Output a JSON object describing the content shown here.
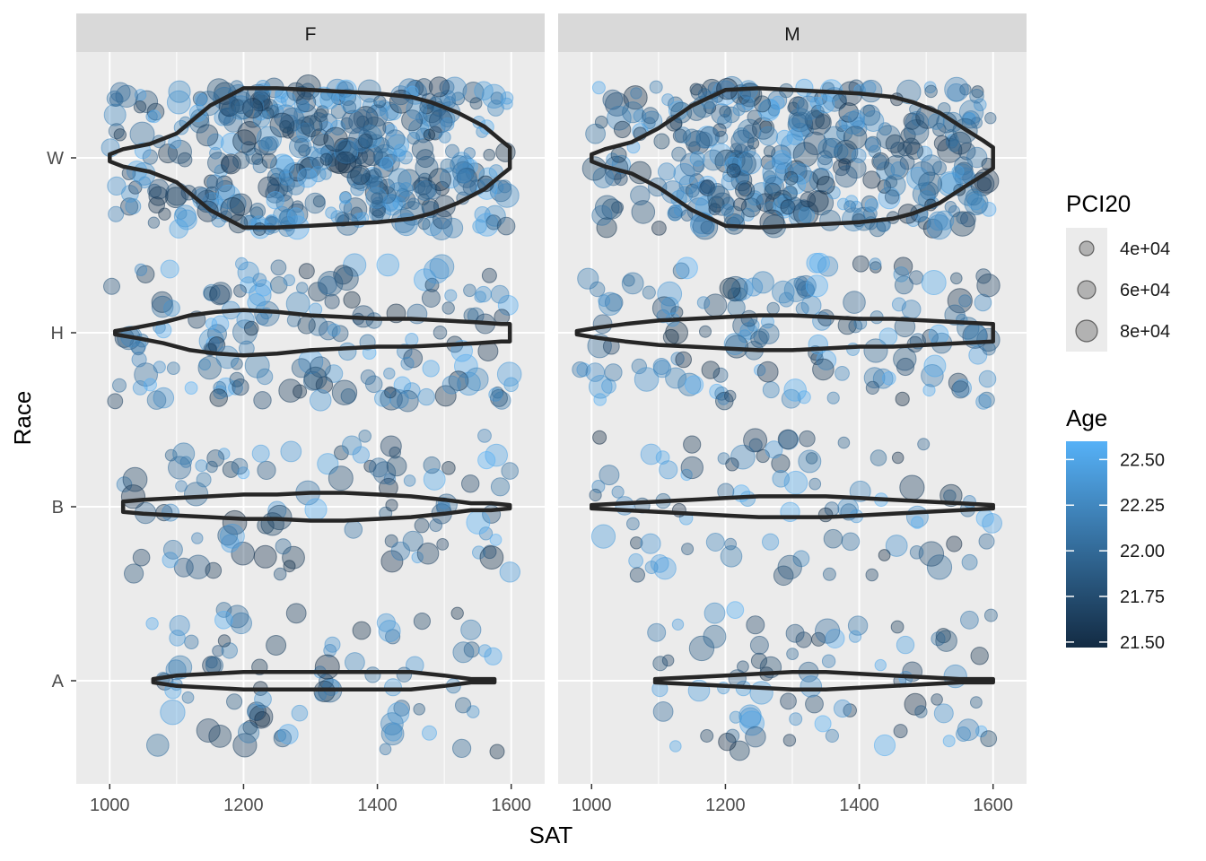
{
  "chart_data": {
    "type": "scatter",
    "subtype": "jitter with violin overlay, faceted",
    "facets": [
      "F",
      "M"
    ],
    "xlabel": "SAT",
    "ylabel": "Race",
    "x_ticks": [
      1000,
      1200,
      1400,
      1600
    ],
    "xlim": [
      950,
      1650
    ],
    "y_categories": [
      "A",
      "B",
      "H",
      "W"
    ],
    "grid": true,
    "legend_placement": "right",
    "size_legend": {
      "title": "PCI20",
      "entries": [
        {
          "label": "4e+04",
          "value": 40000
        },
        {
          "label": "6e+04",
          "value": 60000
        },
        {
          "label": "8e+04",
          "value": 80000
        }
      ]
    },
    "color_legend": {
      "title": "Age",
      "ticks": [
        {
          "label": "22.50",
          "value": 22.5
        },
        {
          "label": "22.25",
          "value": 22.25
        },
        {
          "label": "22.00",
          "value": 22.0
        },
        {
          "label": "21.75",
          "value": 21.75
        },
        {
          "label": "21.50",
          "value": 21.5
        }
      ],
      "range": [
        21.47,
        22.6
      ],
      "low_color": "#132b43",
      "high_color": "#56b1f7"
    },
    "violins": [
      {
        "facet": "F",
        "race": "W",
        "x": [
          1000,
          1020,
          1060,
          1100,
          1150,
          1200,
          1250,
          1300,
          1350,
          1400,
          1450,
          1480,
          1520,
          1560,
          1585,
          1598
        ],
        "half_width": [
          0.02,
          0.05,
          0.08,
          0.14,
          0.3,
          0.4,
          0.4,
          0.39,
          0.38,
          0.37,
          0.35,
          0.32,
          0.26,
          0.18,
          0.1,
          0.06
        ]
      },
      {
        "facet": "F",
        "race": "H",
        "x": [
          1008,
          1040,
          1080,
          1120,
          1160,
          1200,
          1250,
          1300,
          1350,
          1400,
          1450,
          1500,
          1550,
          1585,
          1598
        ],
        "half_width": [
          0.01,
          0.03,
          0.06,
          0.1,
          0.12,
          0.13,
          0.12,
          0.1,
          0.09,
          0.08,
          0.08,
          0.07,
          0.06,
          0.05,
          0.05
        ]
      },
      {
        "facet": "F",
        "race": "B",
        "x": [
          1020,
          1050,
          1100,
          1150,
          1200,
          1250,
          1300,
          1350,
          1400,
          1450,
          1500,
          1540,
          1570,
          1598
        ],
        "half_width": [
          0.03,
          0.04,
          0.05,
          0.06,
          0.07,
          0.07,
          0.08,
          0.08,
          0.07,
          0.06,
          0.04,
          0.02,
          0.02,
          0.01
        ]
      },
      {
        "facet": "F",
        "race": "A",
        "x": [
          1065,
          1100,
          1150,
          1200,
          1250,
          1300,
          1350,
          1400,
          1450,
          1500,
          1540,
          1575
        ],
        "half_width": [
          0.01,
          0.03,
          0.04,
          0.05,
          0.05,
          0.05,
          0.05,
          0.05,
          0.05,
          0.03,
          0.01,
          0.01
        ]
      },
      {
        "facet": "M",
        "race": "W",
        "x": [
          1000,
          1020,
          1060,
          1100,
          1150,
          1200,
          1250,
          1300,
          1350,
          1400,
          1450,
          1480,
          1520,
          1560,
          1585,
          1600
        ],
        "half_width": [
          0.02,
          0.05,
          0.09,
          0.17,
          0.3,
          0.39,
          0.4,
          0.39,
          0.38,
          0.37,
          0.35,
          0.32,
          0.26,
          0.16,
          0.1,
          0.06
        ]
      },
      {
        "facet": "M",
        "race": "H",
        "x": [
          978,
          1010,
          1050,
          1100,
          1150,
          1200,
          1250,
          1300,
          1350,
          1400,
          1450,
          1500,
          1550,
          1600
        ],
        "half_width": [
          0.01,
          0.03,
          0.05,
          0.07,
          0.08,
          0.09,
          0.1,
          0.1,
          0.09,
          0.08,
          0.08,
          0.07,
          0.06,
          0.05
        ]
      },
      {
        "facet": "M",
        "race": "B",
        "x": [
          1000,
          1050,
          1100,
          1150,
          1200,
          1250,
          1300,
          1350,
          1400,
          1450,
          1500,
          1550,
          1600
        ],
        "half_width": [
          0.01,
          0.02,
          0.03,
          0.04,
          0.05,
          0.06,
          0.06,
          0.06,
          0.05,
          0.04,
          0.03,
          0.02,
          0.01
        ]
      },
      {
        "facet": "M",
        "race": "A",
        "x": [
          1095,
          1150,
          1200,
          1250,
          1300,
          1350,
          1400,
          1450,
          1500,
          1550,
          1600
        ],
        "half_width": [
          0.01,
          0.02,
          0.03,
          0.04,
          0.05,
          0.05,
          0.04,
          0.03,
          0.02,
          0.01,
          0.01
        ]
      }
    ],
    "points": [
      {
        "facet": "F",
        "race": "W",
        "n": 420,
        "x_range": [
          1000,
          1600
        ]
      },
      {
        "facet": "F",
        "race": "H",
        "n": 160,
        "x_range": [
          1000,
          1600
        ]
      },
      {
        "facet": "F",
        "race": "B",
        "n": 95,
        "x_range": [
          1020,
          1600
        ]
      },
      {
        "facet": "F",
        "race": "A",
        "n": 80,
        "x_range": [
          1060,
          1580
        ]
      },
      {
        "facet": "M",
        "race": "W",
        "n": 380,
        "x_range": [
          1000,
          1600
        ]
      },
      {
        "facet": "M",
        "race": "H",
        "n": 150,
        "x_range": [
          980,
          1600
        ]
      },
      {
        "facet": "M",
        "race": "B",
        "n": 85,
        "x_range": [
          1000,
          1600
        ]
      },
      {
        "facet": "M",
        "race": "A",
        "n": 75,
        "x_range": [
          1090,
          1600
        ]
      }
    ]
  }
}
